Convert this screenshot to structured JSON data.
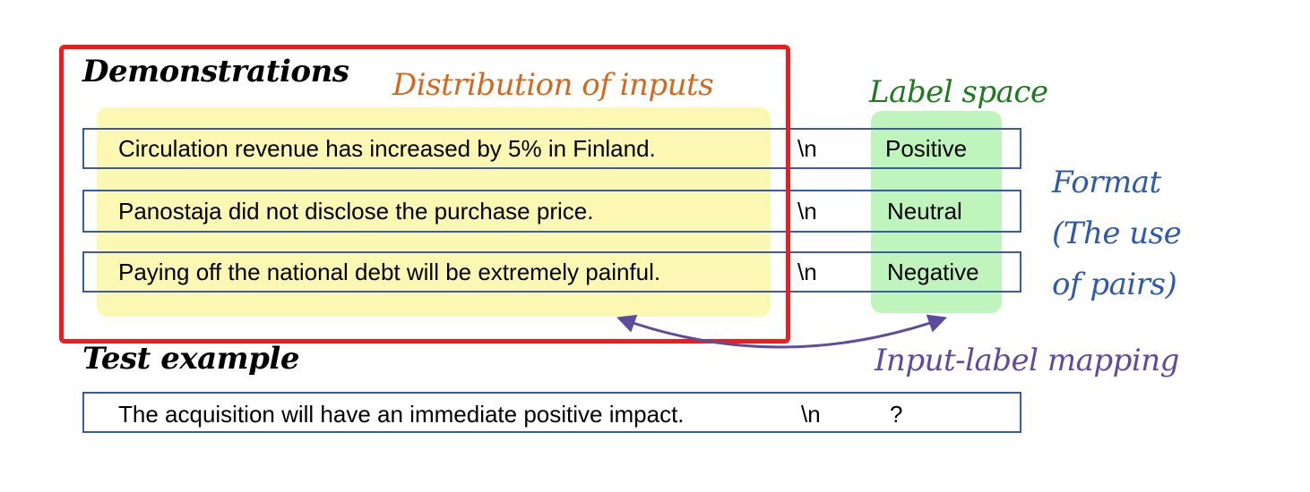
{
  "headings": {
    "demonstrations": "Demonstrations",
    "test_example": "Test example"
  },
  "annotations": {
    "distribution_of_inputs": "Distribution of inputs",
    "label_space": "Label space",
    "format_lines": [
      "Format",
      "(The use",
      "of pairs)"
    ],
    "input_label_mapping": "Input-label mapping"
  },
  "demonstrations": [
    {
      "input": "Circulation revenue has increased by 5% in Finland.",
      "separator": "\\n",
      "label": "Positive"
    },
    {
      "input": "Panostaja did not disclose the purchase price.",
      "separator": "\\n",
      "label": "Neutral"
    },
    {
      "input": "Paying off the national debt will be extremely painful.",
      "separator": "\\n",
      "label": "Negative"
    }
  ],
  "test": {
    "input": "The acquisition will have an immediate positive impact.",
    "separator": "\\n",
    "label": "?"
  },
  "colors": {
    "demo_frame": "#ee1c1c",
    "inputs_highlight": "#fbf8b4",
    "labels_highlight": "#bff5bd",
    "row_border": "#3b5aa6",
    "distribution_text": "#d2691e",
    "label_space_text": "#1f7a1f",
    "format_text": "#2e5aa8",
    "mapping_text": "#5e4a9e"
  }
}
